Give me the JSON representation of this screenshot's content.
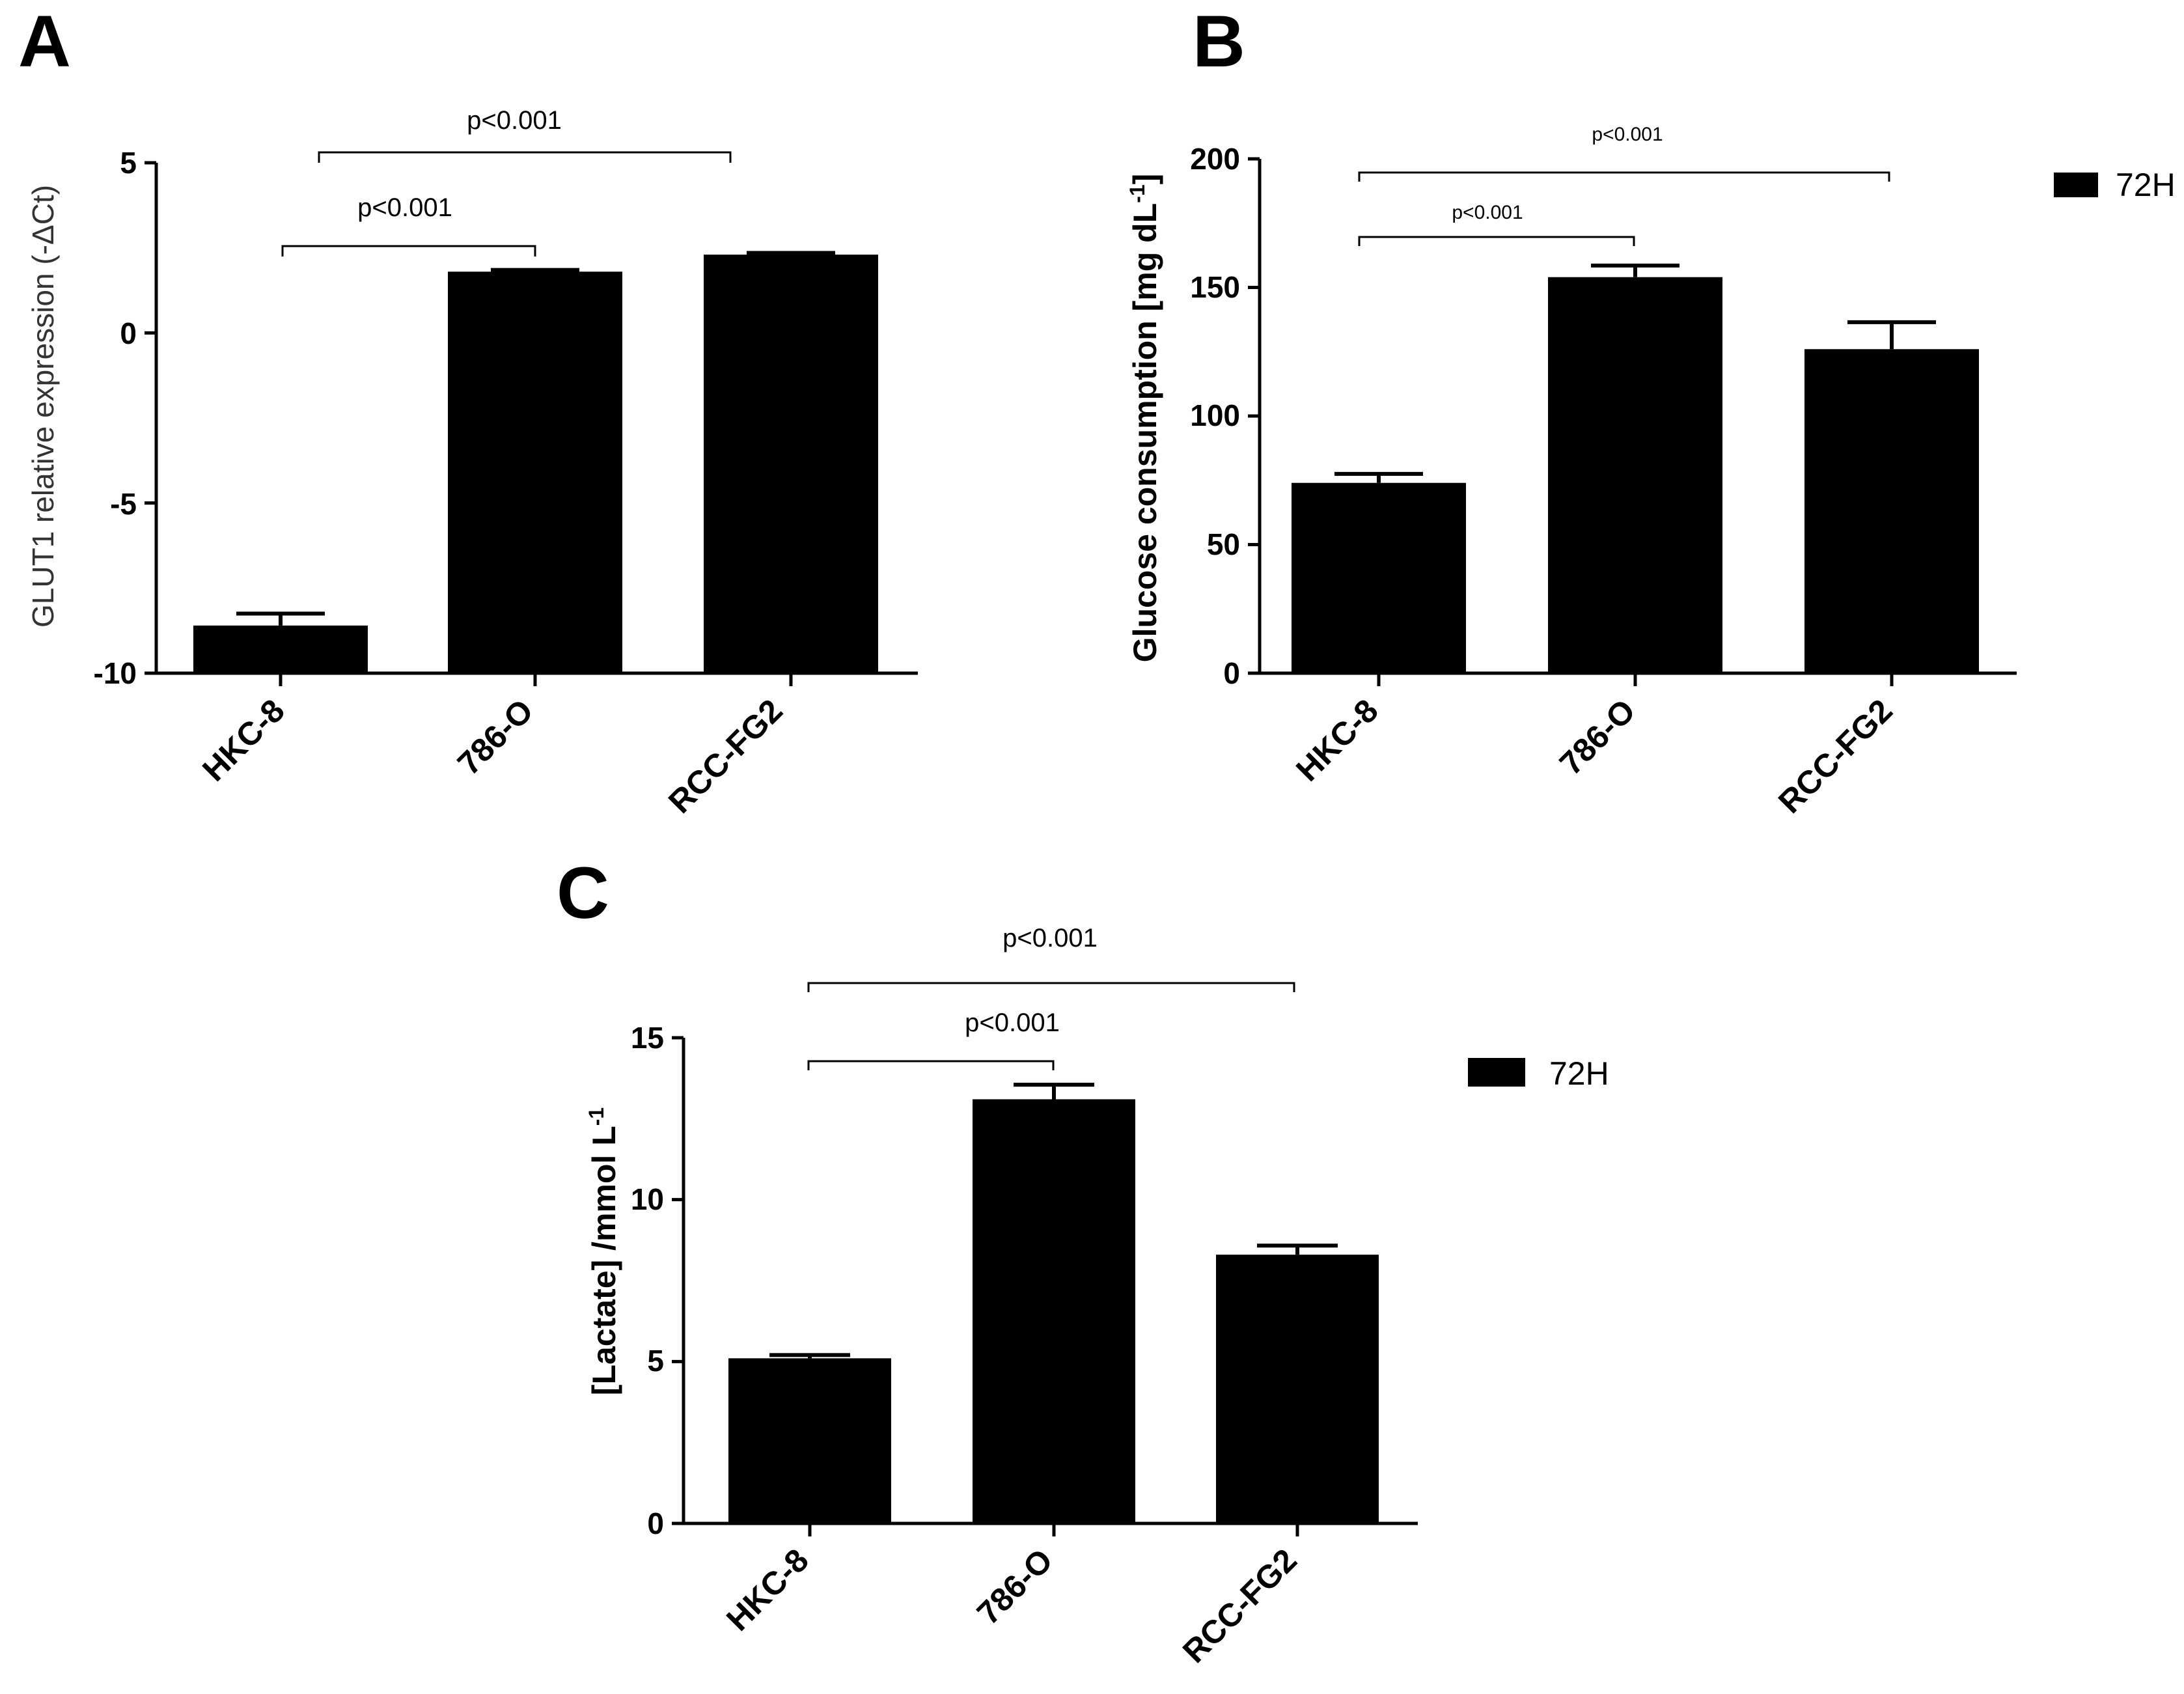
{
  "figure": {
    "colors": {
      "bar": "#000000",
      "axis": "#000000",
      "background": "#ffffff"
    }
  },
  "chart_data": [
    {
      "panel": "A",
      "type": "bar",
      "categories": [
        "HKC-8",
        "786-O",
        "RCC-FG2"
      ],
      "values": [
        -8.6,
        1.8,
        2.3
      ],
      "errors": [
        0.35,
        0.05,
        0.05
      ],
      "ylabel": "GLUT1 relative expression (-ΔCt)",
      "xlabel": "",
      "ylim": [
        -10,
        5
      ],
      "yticks": [
        5,
        0,
        -5,
        -10
      ],
      "yticks_text": [
        "5",
        "0",
        "-5",
        "-10"
      ],
      "significance": [
        {
          "from": 0,
          "to": 1,
          "label": "p<0.001"
        },
        {
          "from": 0,
          "to": 2,
          "label": "p<0.001"
        }
      ],
      "legend": null
    },
    {
      "panel": "B",
      "type": "bar",
      "categories": [
        "HKC-8",
        "786-O",
        "RCC-FG2"
      ],
      "values": [
        74,
        154,
        126
      ],
      "errors": [
        3.5,
        4.5,
        10.5
      ],
      "ylabel": "Glucose consumption [mg dL",
      "ylabel_superscript": "-1",
      "ylabel_end": "]",
      "xlabel": "",
      "ylim": [
        0,
        200
      ],
      "yticks": [
        200,
        150,
        100,
        50,
        0
      ],
      "yticks_text": [
        "200",
        "150",
        "100",
        "50",
        "0"
      ],
      "significance": [
        {
          "from": 0,
          "to": 1,
          "label": "p<0.001"
        },
        {
          "from": 0,
          "to": 2,
          "label": "p<0.001"
        }
      ],
      "legend": "72H"
    },
    {
      "panel": "C",
      "type": "bar",
      "categories": [
        "HKC-8",
        "786-O",
        "RCC-FG2"
      ],
      "values": [
        5.1,
        13.1,
        8.3
      ],
      "errors": [
        0.1,
        0.45,
        0.28
      ],
      "ylabel": "[Lactate] /mmol L",
      "ylabel_superscript": "-1",
      "ylabel_end": "",
      "xlabel": "",
      "ylim": [
        0,
        15
      ],
      "yticks": [
        15,
        10,
        5,
        0
      ],
      "yticks_text": [
        "15",
        "10",
        "5",
        "0"
      ],
      "significance": [
        {
          "from": 0,
          "to": 1,
          "label": "p<0.001"
        },
        {
          "from": 0,
          "to": 2,
          "label": "p<0.001"
        }
      ],
      "legend": "72H"
    }
  ]
}
